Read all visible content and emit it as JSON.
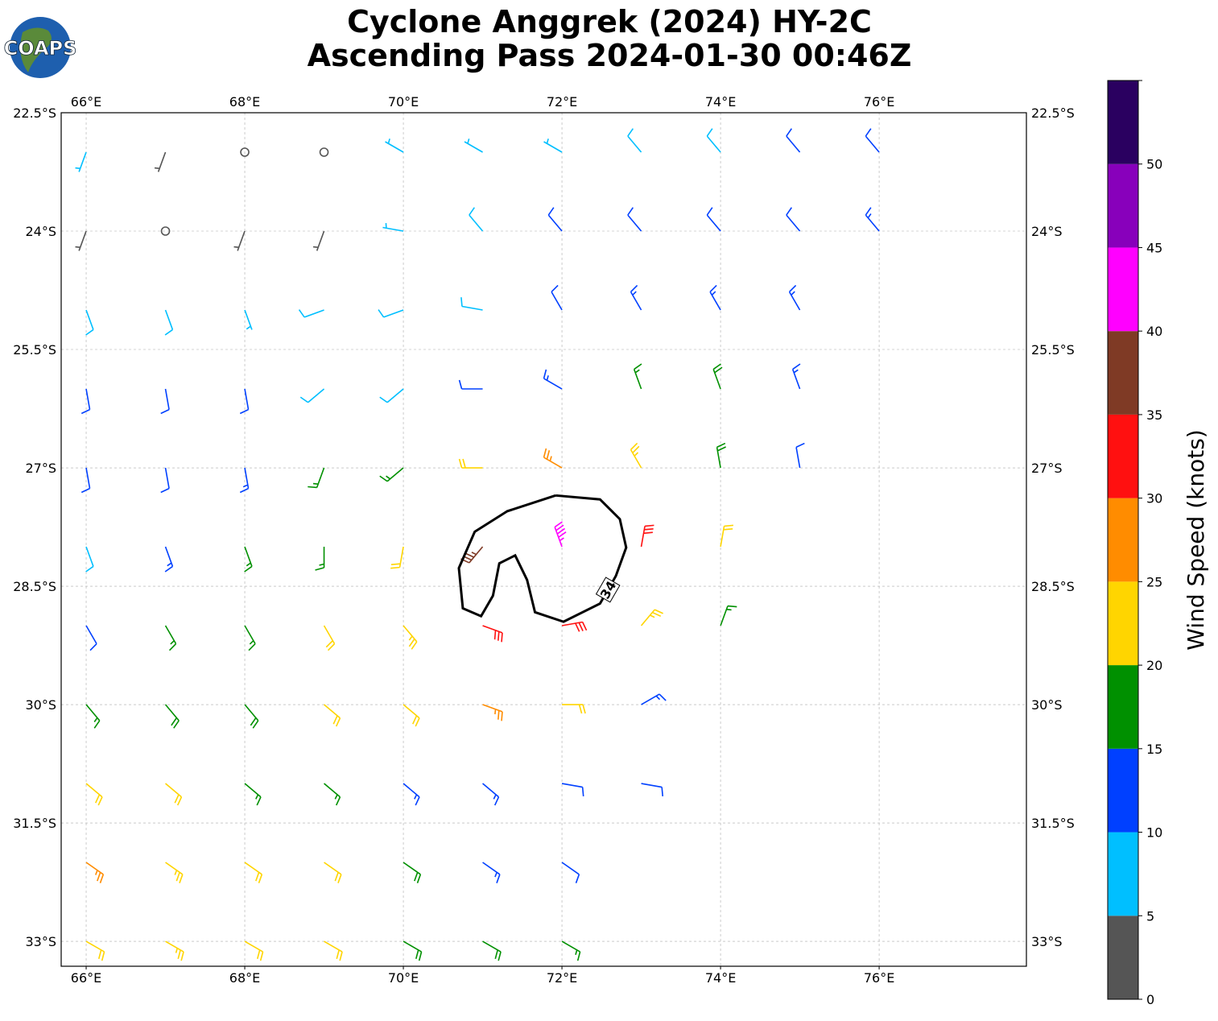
{
  "logo": "COAPS",
  "chart_data": {
    "type": "wind-barbs",
    "title": [
      "Cyclone Anggrek (2024) HY-2C",
      "Ascending Pass 2024-01-30 00:46Z"
    ],
    "xlim": [
      65.685,
      77.857
    ],
    "ylim": [
      -33.316,
      -22.5
    ],
    "xticks": [
      {
        "value": 66,
        "label": "66°E"
      },
      {
        "value": 68,
        "label": "68°E"
      },
      {
        "value": 70,
        "label": "70°E"
      },
      {
        "value": 72,
        "label": "72°E"
      },
      {
        "value": 74,
        "label": "74°E"
      },
      {
        "value": 76,
        "label": "76°E"
      }
    ],
    "yticks": [
      {
        "value": -22.5,
        "label": "22.5°S"
      },
      {
        "value": -24,
        "label": "24°S"
      },
      {
        "value": -25.5,
        "label": "25.5°S"
      },
      {
        "value": -27,
        "label": "27°S"
      },
      {
        "value": -28.5,
        "label": "28.5°S"
      },
      {
        "value": -30,
        "label": "30°S"
      },
      {
        "value": -31.5,
        "label": "31.5°S"
      },
      {
        "value": -33,
        "label": "33°S"
      }
    ],
    "grid": true,
    "colorbar": {
      "label": "Wind Speed (knots)",
      "levels": [
        0,
        5,
        10,
        15,
        20,
        25,
        30,
        35,
        40,
        45,
        50,
        55
      ],
      "colors": [
        "#555555",
        "#00bfff",
        "#0040ff",
        "#009000",
        "#ffd500",
        "#ff8c00",
        "#ff1010",
        "#7f3a25",
        "#ff00ff",
        "#8800bb",
        "#2a0060"
      ],
      "ticks": [
        0,
        5,
        10,
        15,
        20,
        25,
        30,
        35,
        40,
        45,
        50
      ]
    },
    "barbs": {
      "lon": [
        66,
        67,
        68,
        69,
        70,
        71,
        72,
        73,
        74,
        75,
        76,
        66,
        67,
        68,
        69,
        70,
        71,
        72,
        73,
        74,
        75,
        76,
        66,
        67,
        68,
        69,
        70,
        71,
        72,
        73,
        74,
        75,
        66,
        67,
        68,
        69,
        70,
        71,
        72,
        73,
        74,
        75,
        66,
        67,
        68,
        69,
        70,
        71,
        72,
        73,
        74,
        75,
        66,
        67,
        68,
        69,
        70,
        71,
        72,
        73,
        74,
        66,
        67,
        68,
        69,
        70,
        71,
        72,
        73,
        74,
        66,
        67,
        68,
        69,
        70,
        71,
        72,
        73,
        66,
        67,
        68,
        69,
        70,
        71,
        72,
        73,
        66,
        67,
        68,
        69,
        70,
        71,
        72,
        66,
        67,
        68,
        69,
        70,
        71,
        72
      ],
      "lat": [
        -23,
        -23,
        -23,
        -23,
        -23,
        -23,
        -23,
        -23,
        -23,
        -23,
        -23,
        -24,
        -24,
        -24,
        -24,
        -24,
        -24,
        -24,
        -24,
        -24,
        -24,
        -24,
        -25,
        -25,
        -25,
        -25,
        -25,
        -25,
        -25,
        -25,
        -25,
        -25,
        -26,
        -26,
        -26,
        -26,
        -26,
        -26,
        -26,
        -26,
        -26,
        -26,
        -27,
        -27,
        -27,
        -27,
        -27,
        -27,
        -27,
        -27,
        -27,
        -27,
        -28,
        -28,
        -28,
        -28,
        -28,
        -28,
        -28,
        -28,
        -28,
        -29,
        -29,
        -29,
        -29,
        -29,
        -29,
        -29,
        -29,
        -29,
        -30,
        -30,
        -30,
        -30,
        -30,
        -30,
        -30,
        -30,
        -31,
        -31,
        -31,
        -31,
        -31,
        -31,
        -31,
        -31,
        -32,
        -32,
        -32,
        -32,
        -32,
        -32,
        -32,
        -33,
        -33,
        -33,
        -33,
        -33,
        -33,
        -33
      ],
      "speed": [
        7,
        3,
        2,
        0,
        7,
        7,
        7,
        8,
        9,
        11,
        11,
        4,
        2,
        3,
        3,
        7,
        8,
        10,
        11,
        11,
        12,
        13,
        8,
        8,
        7,
        8,
        8,
        9,
        11,
        14,
        14,
        14,
        12,
        12,
        12,
        9,
        9,
        12,
        14,
        17,
        18,
        13,
        12,
        12,
        13,
        15,
        16,
        22,
        26,
        24,
        18,
        12,
        9,
        13,
        15,
        17,
        22,
        36,
        44,
        30,
        22,
        12,
        15,
        17,
        20,
        23,
        32,
        30,
        24,
        16,
        16,
        18,
        18,
        20,
        21,
        25,
        20,
        14,
        22,
        20,
        17,
        16,
        14,
        13,
        11,
        10,
        26,
        23,
        22,
        20,
        18,
        14,
        10,
        22,
        23,
        22,
        20,
        19,
        18,
        16
      ],
      "direction": [
        200,
        200,
        200,
        0,
        300,
        300,
        300,
        320,
        320,
        320,
        320,
        200,
        200,
        200,
        200,
        280,
        320,
        320,
        320,
        320,
        320,
        320,
        160,
        160,
        160,
        250,
        250,
        280,
        330,
        330,
        330,
        330,
        170,
        170,
        170,
        230,
        230,
        270,
        300,
        340,
        340,
        340,
        170,
        170,
        170,
        200,
        230,
        270,
        300,
        330,
        350,
        350,
        160,
        160,
        160,
        180,
        190,
        220,
        340,
        10,
        10,
        150,
        150,
        150,
        150,
        140,
        110,
        80,
        40,
        20,
        140,
        140,
        140,
        130,
        130,
        110,
        90,
        60,
        130,
        130,
        130,
        130,
        130,
        130,
        100,
        100,
        125,
        125,
        125,
        125,
        125,
        125,
        125,
        120,
        120,
        120,
        120,
        120,
        120,
        120
      ]
    },
    "contour": {
      "label": "34",
      "lon": [
        71.92,
        72.48,
        72.73,
        72.81,
        72.68,
        72.48,
        72.02,
        71.66,
        71.56,
        71.41,
        71.21,
        71.13,
        70.98,
        70.75,
        70.7,
        70.9,
        71.31,
        71.92
      ],
      "lat": [
        -27.35,
        -27.4,
        -27.65,
        -28.01,
        -28.37,
        -28.72,
        -28.95,
        -28.83,
        -28.42,
        -28.11,
        -28.21,
        -28.62,
        -28.88,
        -28.78,
        -28.27,
        -27.81,
        -27.55,
        -27.35
      ]
    }
  }
}
